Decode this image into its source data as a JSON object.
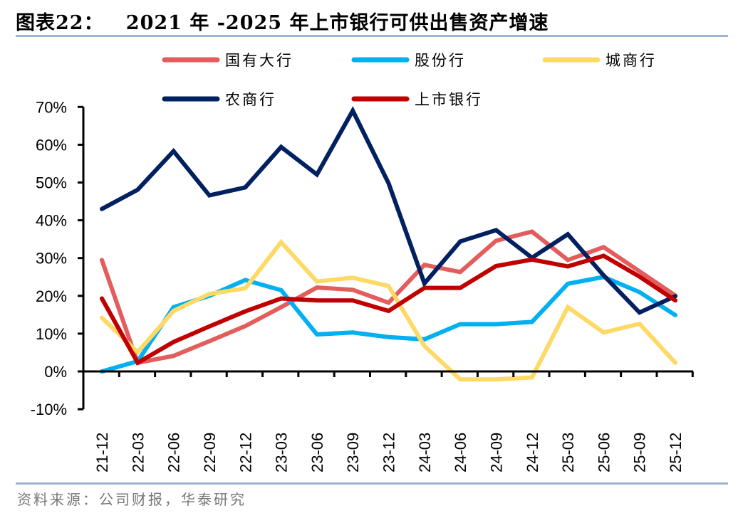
{
  "header": {
    "figure_label": "图表22：",
    "title": "2021 年 -2025 年上市银行可供出售资产增速"
  },
  "footer": {
    "source": "资料来源：公司财报，华泰研究"
  },
  "chart_data": {
    "type": "line",
    "title": "2021 年 -2025 年上市银行可供出售资产增速",
    "xlabel": "",
    "ylabel": "",
    "categories": [
      "21-12",
      "22-03",
      "22-06",
      "22-09",
      "22-12",
      "23-03",
      "23-06",
      "23-09",
      "23-12",
      "24-03",
      "24-06",
      "24-09",
      "24-12",
      "25-03",
      "25-06",
      "25-09",
      "25-12"
    ],
    "ylim": [
      -10,
      70
    ],
    "yticks": [
      -10,
      0,
      10,
      20,
      30,
      40,
      50,
      60,
      70
    ],
    "ytick_labels": [
      "-10%",
      "0%",
      "10%",
      "20%",
      "30%",
      "40%",
      "50%",
      "60%",
      "70%"
    ],
    "y_unit": "%",
    "grid": false,
    "legend_position": "top",
    "series": [
      {
        "name": "国有大行",
        "color": "#e35d5d",
        "values": [
          29.5,
          2.3,
          4.1,
          8.0,
          12.0,
          17.0,
          22.2,
          21.6,
          18.2,
          28.2,
          26.3,
          34.6,
          37.0,
          29.5,
          32.9,
          26.5,
          20.1
        ]
      },
      {
        "name": "股份行",
        "color": "#00b0f0",
        "values": [
          0.0,
          2.7,
          17.0,
          20.0,
          24.2,
          21.5,
          9.8,
          10.3,
          9.1,
          8.5,
          12.5,
          12.5,
          13.1,
          23.2,
          25.0,
          21.0,
          14.9
        ]
      },
      {
        "name": "城商行",
        "color": "#ffd966",
        "values": [
          14.2,
          5.1,
          16.0,
          20.5,
          22.0,
          34.2,
          23.8,
          24.8,
          22.6,
          6.7,
          -2.1,
          -2.1,
          -1.6,
          17.0,
          10.3,
          12.6,
          2.3
        ]
      },
      {
        "name": "农商行",
        "color": "#002060",
        "values": [
          43.0,
          48.1,
          58.3,
          46.6,
          48.7,
          59.4,
          52.1,
          69.0,
          49.8,
          23.3,
          34.4,
          37.4,
          30.1,
          36.3,
          25.4,
          15.6,
          19.9
        ]
      },
      {
        "name": "上市银行",
        "color": "#c00000",
        "values": [
          19.3,
          2.3,
          7.8,
          11.9,
          15.9,
          19.3,
          18.8,
          18.8,
          16.0,
          22.1,
          22.1,
          27.9,
          29.6,
          27.8,
          30.6,
          25.1,
          18.8
        ]
      }
    ]
  }
}
